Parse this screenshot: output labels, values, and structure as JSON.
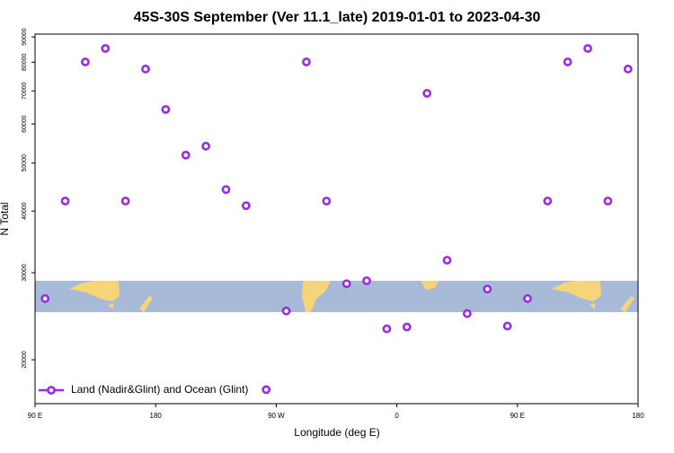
{
  "chart_data": {
    "type": "scatter",
    "title": "45S-30S September (Ver 11.1_late)   2019-01-01 to 2023-04-30",
    "x_label": "Longitude (deg E)",
    "y_label": "N Total",
    "xlim": [
      90,
      540
    ],
    "xticks": [
      {
        "value": 90,
        "label": "90 E"
      },
      180,
      {
        "value": 270,
        "label": "90 W"
      },
      {
        "value": 360,
        "label": "0"
      },
      {
        "value": 450,
        "label": "90 E"
      },
      {
        "value": 540,
        "label": "180"
      }
    ],
    "ylim": [
      16300,
      91200
    ],
    "yscale": "log",
    "yticks": [
      20000,
      30000,
      40000,
      50000,
      60000,
      70000,
      80000,
      90000
    ],
    "legend": "lower left",
    "series": [
      {
        "name": "Land (Nadir&Glint) and Ocean (Glint)",
        "color": "#9a2be2",
        "x": [
          97.5,
          112.5,
          127.5,
          142.5,
          157.5,
          172.5,
          187.5,
          202.5,
          217.5,
          232.5,
          247.5,
          262.5,
          277.5,
          292.5,
          307.5,
          322.5,
          337.5,
          352.5,
          367.5,
          382.5,
          397.5,
          412.5,
          427.5,
          442.5,
          457.5,
          472.5,
          487.5,
          502.5,
          517.5,
          532.5
        ],
        "values": [
          26600,
          41900,
          80100,
          85300,
          41900,
          77500,
          64200,
          51900,
          54100,
          44200,
          41000,
          17400,
          25100,
          80100,
          41900,
          28500,
          28900,
          23100,
          23300,
          69200,
          31800,
          24800,
          27800,
          23400,
          26600,
          41900,
          80100,
          85300,
          41900,
          77500
        ]
      }
    ]
  }
}
